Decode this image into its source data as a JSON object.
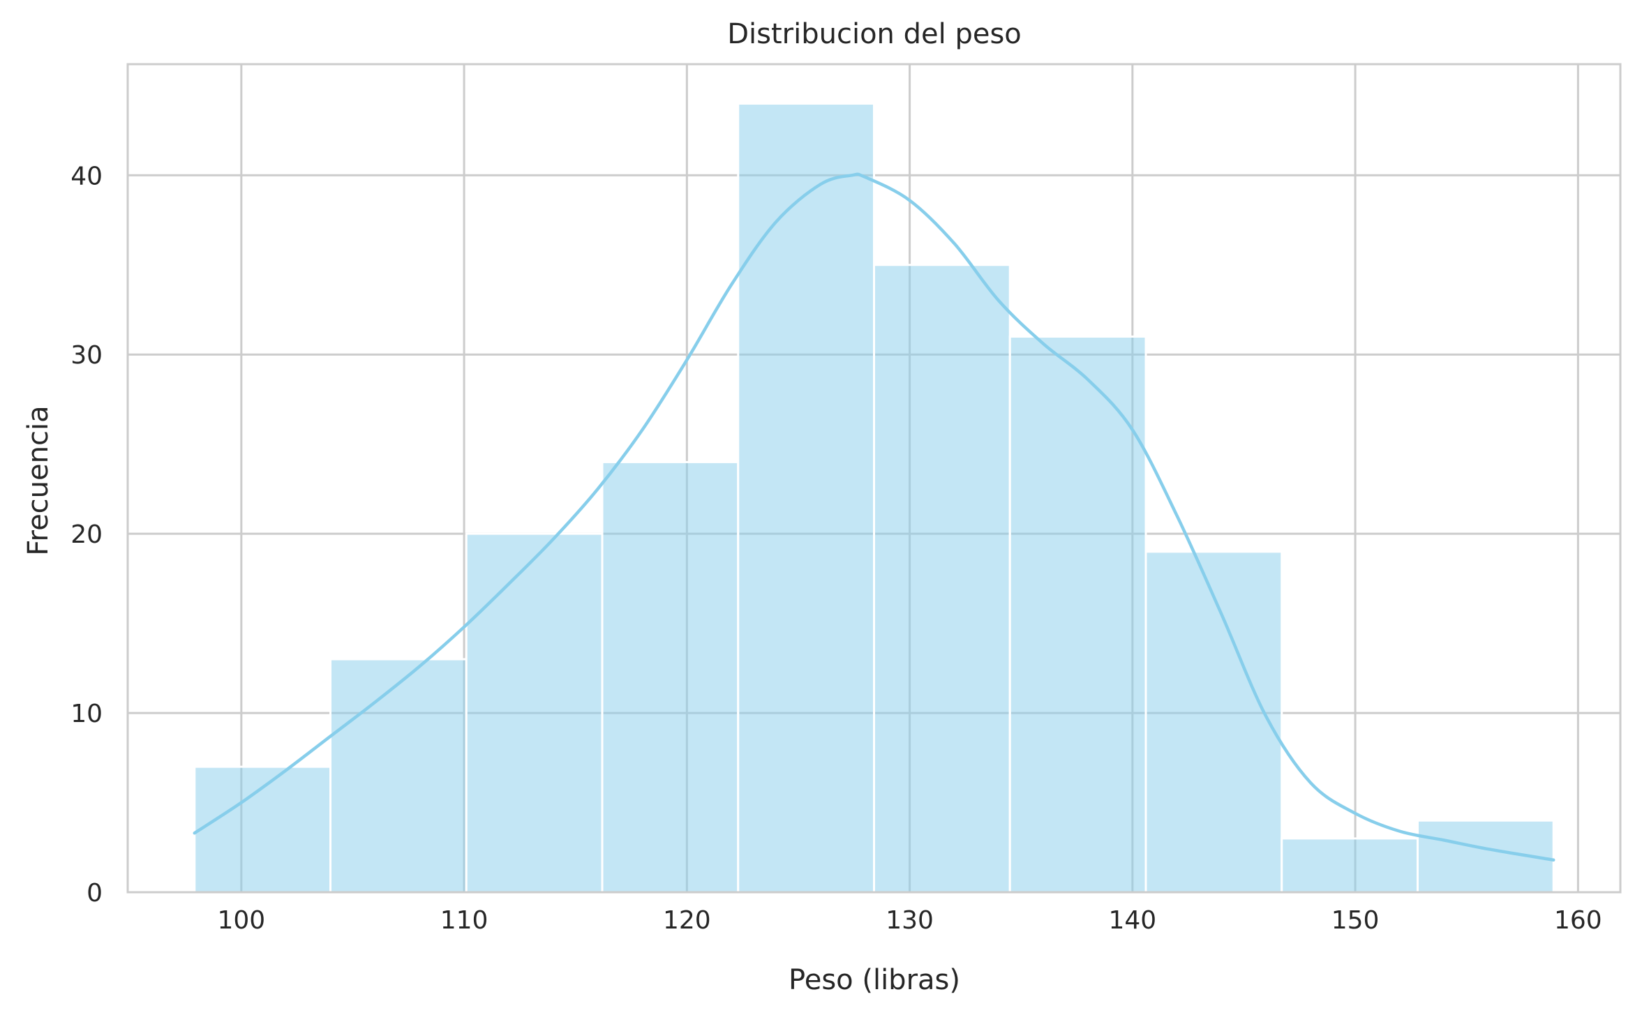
{
  "chart_data": {
    "type": "bar",
    "title": "Distribucion del peso",
    "xlabel": "Peso (libras)",
    "ylabel": "Frecuencia",
    "xlim": [
      94.9,
      161.9
    ],
    "ylim": [
      0,
      46.2
    ],
    "xticks": [
      100,
      110,
      120,
      130,
      140,
      150,
      160
    ],
    "yticks": [
      0,
      10,
      20,
      30,
      40
    ],
    "grid": true,
    "bin_edges": [
      97.9,
      104.0,
      110.1,
      116.2,
      122.3,
      128.4,
      134.5,
      140.6,
      146.7,
      152.8,
      158.9
    ],
    "values": [
      7,
      13,
      20,
      24,
      44,
      35,
      31,
      19,
      3,
      4
    ],
    "bar_color": "#87ceeb",
    "kde": {
      "color": "#87ceeb",
      "x": [
        97.9,
        100,
        102,
        104,
        106,
        108,
        110,
        112,
        114,
        116,
        118,
        120,
        122,
        124,
        126,
        127.4,
        128,
        130,
        132,
        134,
        136,
        138,
        140,
        142,
        144,
        146,
        148,
        150,
        152,
        154,
        156,
        158.9
      ],
      "y": [
        3.3,
        5.0,
        6.8,
        8.7,
        10.6,
        12.6,
        14.8,
        17.2,
        19.7,
        22.5,
        25.8,
        29.7,
        33.9,
        37.4,
        39.5,
        40.0,
        39.9,
        38.6,
        36.2,
        33.0,
        30.6,
        28.6,
        25.8,
        21.0,
        15.5,
        9.8,
        6.1,
        4.4,
        3.4,
        2.9,
        2.4,
        1.8
      ]
    }
  }
}
